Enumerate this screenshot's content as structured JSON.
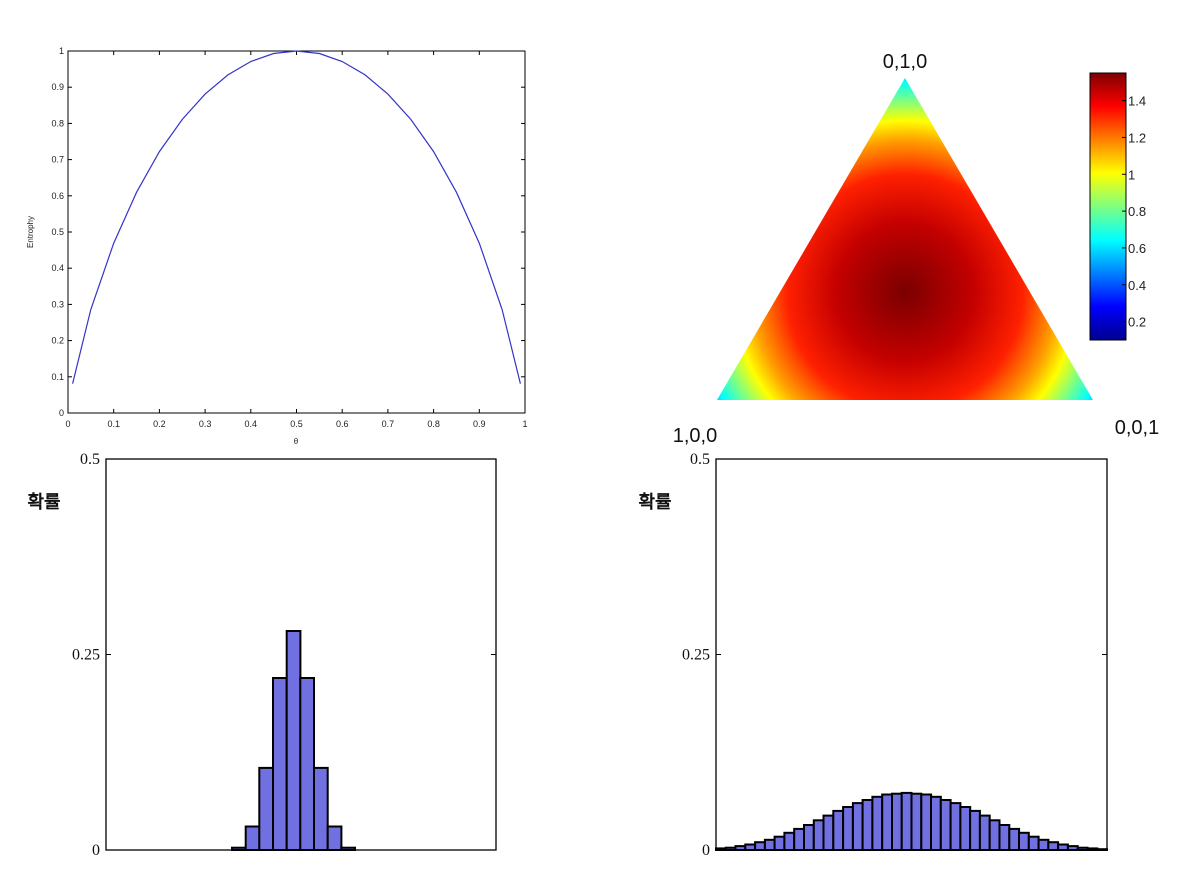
{
  "chart_data": [
    {
      "type": "line",
      "xlabel": "θ",
      "ylabel": "Entrophy",
      "xlim": [
        0,
        1
      ],
      "ylim": [
        0,
        1
      ],
      "x_ticks": [
        "0",
        "0.1",
        "0.2",
        "0.3",
        "0.4",
        "0.5",
        "0.6",
        "0.7",
        "0.8",
        "0.9",
        "1"
      ],
      "y_ticks": [
        "0",
        "0.1",
        "0.2",
        "0.3",
        "0.4",
        "0.5",
        "0.6",
        "0.7",
        "0.8",
        "0.9",
        "1"
      ],
      "x": [
        0.01,
        0.05,
        0.1,
        0.15,
        0.2,
        0.25,
        0.3,
        0.35,
        0.4,
        0.45,
        0.5,
        0.55,
        0.6,
        0.65,
        0.7,
        0.75,
        0.8,
        0.85,
        0.9,
        0.95,
        0.99
      ],
      "y": [
        0.081,
        0.286,
        0.469,
        0.61,
        0.722,
        0.811,
        0.881,
        0.934,
        0.971,
        0.993,
        1.0,
        0.993,
        0.971,
        0.934,
        0.881,
        0.811,
        0.722,
        0.61,
        0.469,
        0.286,
        0.081
      ],
      "line_color": "#3333cc",
      "grid": false
    },
    {
      "type": "heatmap",
      "vertex_labels": {
        "top": "0,1,0",
        "left": "1,0,0",
        "right": "0,0,1"
      },
      "colorbar_ticks": [
        "0.2",
        "0.4",
        "0.6",
        "0.8",
        "1",
        "1.2",
        "1.4"
      ],
      "colorbar_range": [
        0.1,
        1.55
      ],
      "colormap": [
        "#00008f",
        "#0000ff",
        "#00ffff",
        "#ffff00",
        "#ff0000",
        "#800000"
      ]
    },
    {
      "type": "bar",
      "ylabel": "확률",
      "ylim": [
        0,
        0.5
      ],
      "y_ticks": [
        "0",
        "0.25",
        "0.5"
      ],
      "values": [
        0.003,
        0.03,
        0.105,
        0.22,
        0.28,
        0.22,
        0.105,
        0.03,
        0.003
      ],
      "bar_color": "#7070e0",
      "edge_color": "#000000"
    },
    {
      "type": "bar",
      "ylabel": "확률",
      "ylim": [
        0,
        0.5
      ],
      "y_ticks": [
        "0",
        "0.25",
        "0.5"
      ],
      "values": [
        0.002,
        0.003,
        0.005,
        0.007,
        0.01,
        0.013,
        0.017,
        0.022,
        0.027,
        0.032,
        0.038,
        0.044,
        0.05,
        0.055,
        0.06,
        0.064,
        0.068,
        0.071,
        0.072,
        0.073,
        0.072,
        0.071,
        0.068,
        0.064,
        0.06,
        0.055,
        0.05,
        0.044,
        0.038,
        0.032,
        0.027,
        0.022,
        0.017,
        0.013,
        0.01,
        0.007,
        0.005,
        0.003,
        0.002,
        0.001
      ],
      "bar_color": "#7070e0",
      "edge_color": "#000000"
    }
  ]
}
